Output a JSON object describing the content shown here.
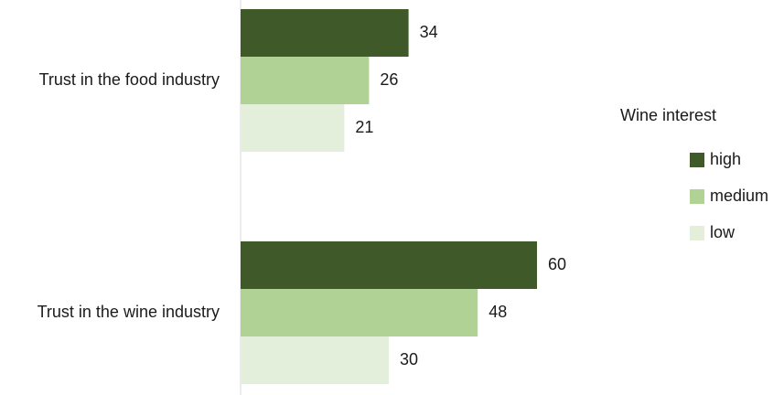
{
  "chart_data": {
    "type": "bar",
    "orientation": "horizontal",
    "categories": [
      "Trust in the food industry",
      "Trust in the wine industry"
    ],
    "series": [
      {
        "name": "high",
        "values": [
          34,
          60
        ],
        "color": "#3f5a28"
      },
      {
        "name": "medium",
        "values": [
          26,
          48
        ],
        "color": "#b1d295"
      },
      {
        "name": "low",
        "values": [
          21,
          30
        ],
        "color": "#e3efda"
      }
    ],
    "legend": {
      "title": "Wine interest",
      "position": "right"
    },
    "xlim": [
      0,
      60
    ],
    "grid": false,
    "data_labels": true,
    "title": "",
    "xlabel": "",
    "ylabel": ""
  }
}
